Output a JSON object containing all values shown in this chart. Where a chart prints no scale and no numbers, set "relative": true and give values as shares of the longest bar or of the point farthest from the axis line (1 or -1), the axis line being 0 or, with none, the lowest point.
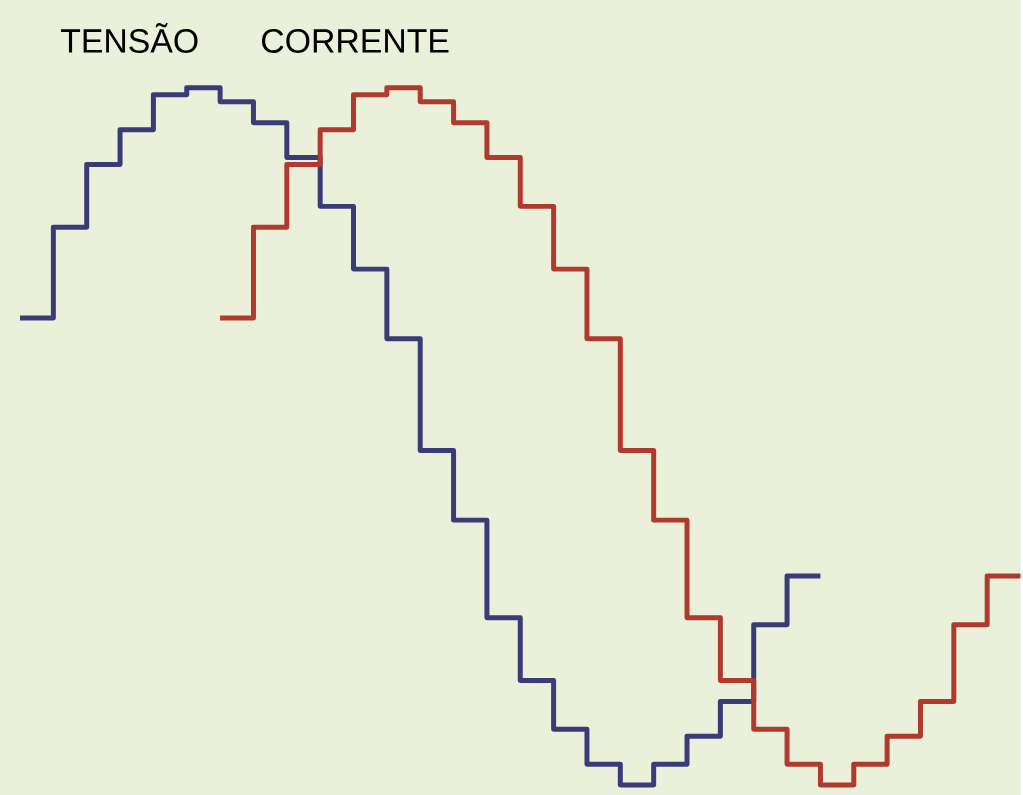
{
  "chart_data": {
    "type": "step",
    "relative": true,
    "line_style": "solid",
    "marker": "none",
    "categories": [
      null,
      null,
      null,
      null,
      null,
      null,
      null,
      null,
      null,
      null,
      null,
      null,
      null,
      null,
      null,
      null,
      null,
      null,
      null,
      null,
      null,
      null,
      null,
      null,
      null,
      null,
      null,
      null,
      null,
      null,
      null
    ],
    "series": [
      {
        "name": "TENSÃO",
        "color": "#3b3b78",
        "values": [
          0.67,
          0.8,
          0.89,
          0.94,
          0.99,
          1.0,
          0.98,
          0.95,
          0.9,
          0.83,
          0.74,
          0.64,
          0.48,
          0.38,
          0.24,
          0.15,
          0.08,
          0.03,
          0,
          0.03,
          0.07,
          0.12,
          0.23,
          0.3,
          0.3,
          null,
          null,
          null,
          null,
          null,
          null
        ]
      },
      {
        "name": "CORRENTE",
        "color": "#b03a2e",
        "values": [
          null,
          null,
          null,
          null,
          null,
          null,
          0.67,
          0.8,
          0.89,
          0.94,
          0.99,
          1.0,
          0.98,
          0.95,
          0.9,
          0.83,
          0.74,
          0.64,
          0.48,
          0.38,
          0.24,
          0.15,
          0.08,
          0.03,
          0,
          0.03,
          0.07,
          0.12,
          0.23,
          0.3,
          0.3
        ]
      }
    ]
  }
}
